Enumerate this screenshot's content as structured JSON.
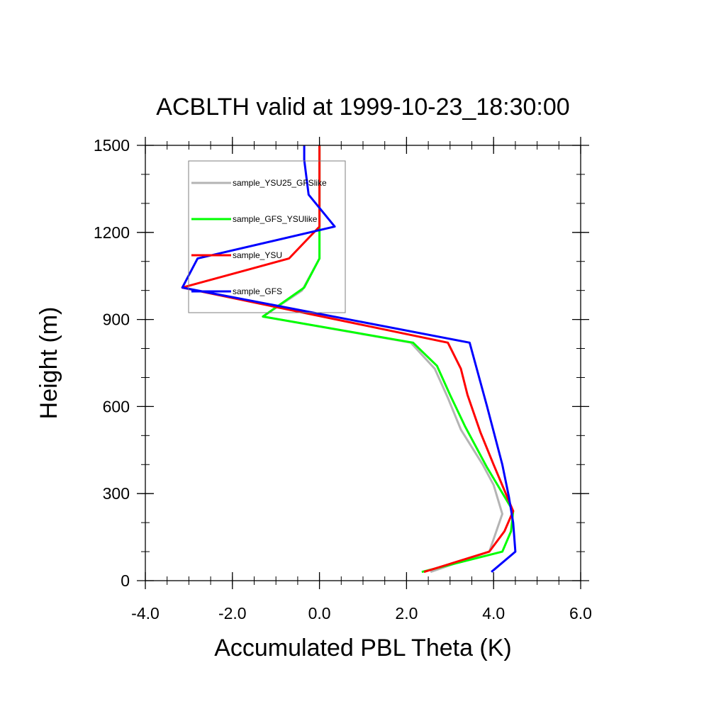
{
  "chart_data": {
    "type": "line",
    "title": "ACBLTH valid at 1999-10-23_18:30:00",
    "xlabel": "Accumulated PBL Theta (K)",
    "ylabel": "Height (m)",
    "xlim": [
      -4.0,
      6.0
    ],
    "ylim": [
      0,
      1500
    ],
    "x_ticks": [
      -4.0,
      -2.0,
      0.0,
      2.0,
      4.0,
      6.0
    ],
    "x_tick_labels": [
      "-4.0",
      "-2.0",
      "0.0",
      "2.0",
      "4.0",
      "6.0"
    ],
    "y_ticks": [
      0,
      300,
      600,
      900,
      1200,
      1500
    ],
    "y_tick_labels": [
      "0",
      "300",
      "600",
      "900",
      "1200",
      "1500"
    ],
    "x_minor_step": 0.5,
    "y_minor_step": 100,
    "grid": false,
    "legend_position": "top-left",
    "series": [
      {
        "name": "sample_YSU25_GFSlike",
        "color": "#b4b4b4",
        "points": [
          [
            2.55,
            30
          ],
          [
            3.9,
            100
          ],
          [
            4.2,
            230
          ],
          [
            4.0,
            330
          ],
          [
            3.75,
            400
          ],
          [
            3.25,
            520
          ],
          [
            2.95,
            630
          ],
          [
            2.65,
            730
          ],
          [
            2.1,
            820
          ],
          [
            -1.3,
            910
          ],
          [
            -0.4,
            1000
          ],
          [
            0.0,
            1110
          ],
          [
            0.0,
            1220
          ],
          [
            0.0,
            1500
          ]
        ]
      },
      {
        "name": "sample_GFS_YSUlike",
        "color": "#00ff00",
        "points": [
          [
            2.35,
            30
          ],
          [
            4.2,
            100
          ],
          [
            4.4,
            170
          ],
          [
            4.45,
            240
          ],
          [
            3.85,
            390
          ],
          [
            3.35,
            530
          ],
          [
            3.0,
            640
          ],
          [
            2.7,
            740
          ],
          [
            2.15,
            820
          ],
          [
            -1.3,
            910
          ],
          [
            -0.35,
            1010
          ],
          [
            0.0,
            1110
          ],
          [
            0.0,
            1220
          ],
          [
            0.0,
            1500
          ]
        ]
      },
      {
        "name": "sample_YSU",
        "color": "#ff0000",
        "points": [
          [
            2.4,
            30
          ],
          [
            3.9,
            100
          ],
          [
            4.25,
            170
          ],
          [
            4.45,
            240
          ],
          [
            4.0,
            400
          ],
          [
            3.7,
            510
          ],
          [
            3.4,
            640
          ],
          [
            3.25,
            730
          ],
          [
            2.95,
            820
          ],
          [
            -3.15,
            1010
          ],
          [
            -0.7,
            1110
          ],
          [
            0.0,
            1220
          ],
          [
            0.0,
            1500
          ]
        ]
      },
      {
        "name": "sample_GFS",
        "color": "#0000ff",
        "points": [
          [
            3.95,
            30
          ],
          [
            4.5,
            100
          ],
          [
            4.45,
            200
          ],
          [
            4.35,
            290
          ],
          [
            4.2,
            400
          ],
          [
            3.85,
            600
          ],
          [
            3.45,
            820
          ],
          [
            -3.15,
            1010
          ],
          [
            -2.8,
            1110
          ],
          [
            0.35,
            1220
          ],
          [
            -0.25,
            1330
          ],
          [
            -0.35,
            1450
          ],
          [
            -0.35,
            1500
          ]
        ]
      }
    ]
  }
}
